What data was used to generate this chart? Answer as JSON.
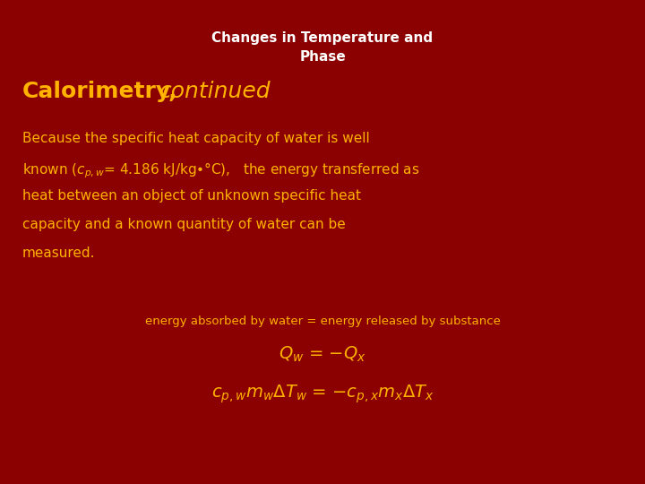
{
  "background_color": "#8B0000",
  "title_text": "Changes in Temperature and\nPhase",
  "title_color": "#FFFFFF",
  "title_fontsize": 11,
  "heading_bold": "Calorimetry,",
  "heading_italic": " continued",
  "heading_color": "#FFB300",
  "heading_fontsize": 18,
  "body_color": "#FFB300",
  "body_fontsize": 11,
  "equation_color": "#FFB300",
  "eq_fontsize": 14,
  "note_fontsize": 9.5,
  "bullet_symbol": "•",
  "degree_symbol": "°"
}
